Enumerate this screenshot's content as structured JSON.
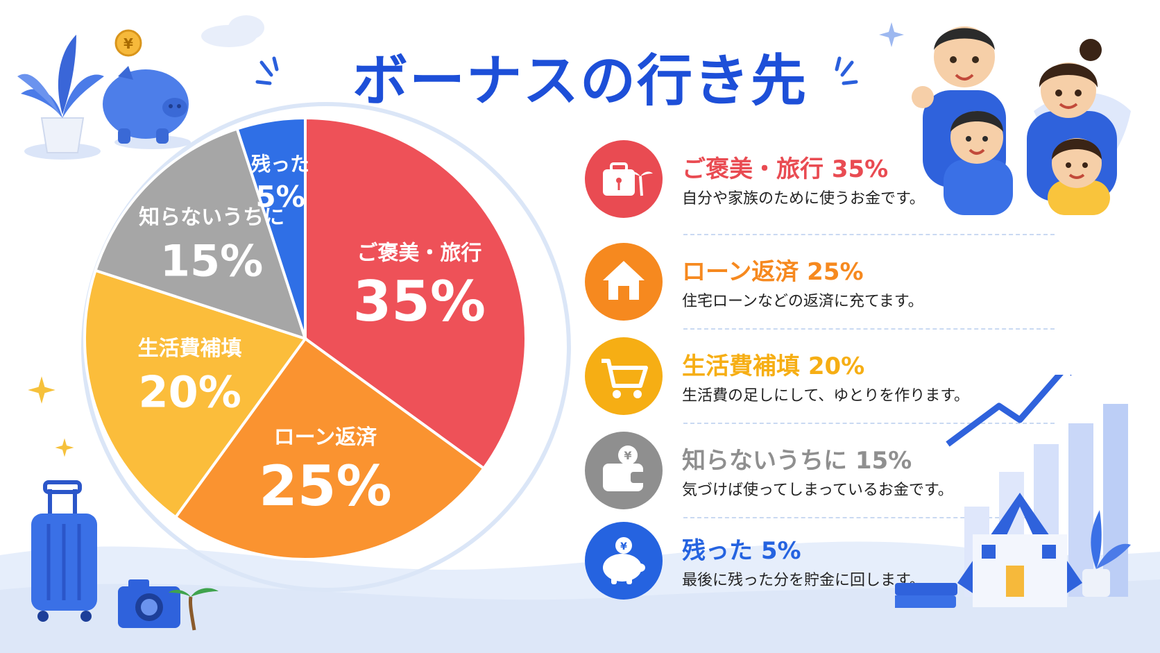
{
  "title": "ボーナスの行き先",
  "chart_data": {
    "type": "pie",
    "slices": [
      {
        "label": "ご褒美・旅行",
        "value": 35,
        "value_text": "35%",
        "color": "#ee5158"
      },
      {
        "label": "ローン返済",
        "value": 25,
        "value_text": "25%",
        "color": "#fa9330"
      },
      {
        "label": "生活費補填",
        "value": 20,
        "value_text": "20%",
        "color": "#fbbd3b"
      },
      {
        "label": "知らないうちに",
        "value": 15,
        "value_text": "15%",
        "color": "#a6a6a6"
      },
      {
        "label": "残った",
        "value": 5,
        "value_text": "5%",
        "color": "#2f6fe6"
      }
    ]
  },
  "legend": [
    {
      "title": "ご褒美・旅行 35%",
      "desc": "自分や家族のために使うお金です。",
      "color": "#e94b52",
      "icon": "suitcase-palm-icon"
    },
    {
      "title": "ローン返済 25%",
      "desc": "住宅ローンなどの返済に充てます。",
      "color": "#f6891f",
      "icon": "house-icon"
    },
    {
      "title": "生活費補填 20%",
      "desc": "生活費の足しにして、ゆとりを作ります。",
      "color": "#f6ae14",
      "icon": "cart-icon"
    },
    {
      "title": "知らないうちに 15%",
      "desc": "気づけば使ってしまっているお金です。",
      "color": "#8f8f8f",
      "icon": "wallet-icon"
    },
    {
      "title": "残った 5%",
      "desc": "最後に残った分を貯金に回します。",
      "color": "#2563e0",
      "icon": "piggy-bank-icon"
    }
  ],
  "decorations": {
    "yen_symbol": "¥"
  }
}
